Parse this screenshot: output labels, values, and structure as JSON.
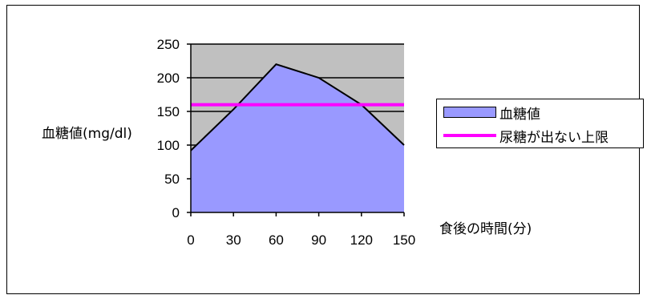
{
  "chart_data": {
    "type": "area",
    "xlabel": "食後の時間(分)",
    "ylabel": "血糖値(mg/dl)",
    "x": [
      0,
      30,
      60,
      90,
      120,
      150
    ],
    "xticks": [
      "0",
      "30",
      "60",
      "90",
      "120",
      "150"
    ],
    "yticks": [
      "0",
      "50",
      "100",
      "150",
      "200",
      "250"
    ],
    "ylim": [
      0,
      250
    ],
    "grid": "horizontal",
    "legend_position": "right",
    "series": [
      {
        "name": "血糖値",
        "type": "area",
        "values": [
          92,
          153,
          220,
          200,
          160,
          100
        ],
        "color": "#9999ff"
      },
      {
        "name": "尿糖が出ない上限",
        "type": "line",
        "values": [
          160,
          160,
          160,
          160,
          160,
          160
        ],
        "color": "#ff00ff"
      }
    ],
    "plot_background": "#c0c0c0"
  }
}
